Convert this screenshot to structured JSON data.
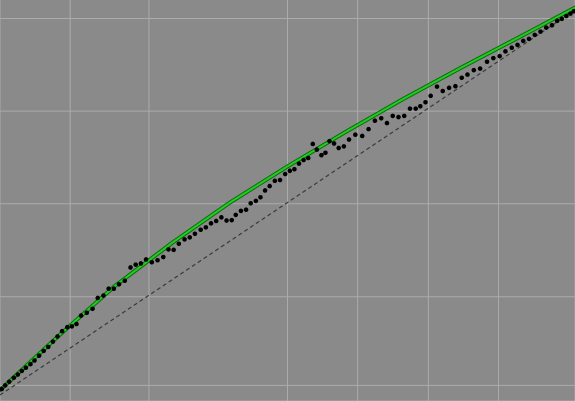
{
  "colors": {
    "background": "#8a8a8a",
    "grid": "#ababab",
    "points": "#000000",
    "fit_line": "#22cc22",
    "fit_line_edge": "#0a6a0a",
    "reference_line": "#3a3a3a"
  },
  "chart_data": {
    "type": "scatter",
    "title": "",
    "xlabel": "",
    "ylabel": "",
    "xlim": [
      0,
      1
    ],
    "ylim": [
      0,
      1
    ],
    "grid": true,
    "grid_x": [
      0.0,
      0.122,
      0.259,
      0.5,
      0.622,
      0.745,
      0.867,
      1.0
    ],
    "grid_y": [
      0.0,
      0.039,
      0.26,
      0.492,
      0.723,
      0.954
    ],
    "legend": "none",
    "series": [
      {
        "kind": "points",
        "points": [
          [
            0.003,
            0.03
          ],
          [
            0.009,
            0.039
          ],
          [
            0.016,
            0.048
          ],
          [
            0.024,
            0.058
          ],
          [
            0.031,
            0.066
          ],
          [
            0.038,
            0.075
          ],
          [
            0.045,
            0.083
          ],
          [
            0.053,
            0.092
          ],
          [
            0.06,
            0.101
          ],
          [
            0.068,
            0.113
          ],
          [
            0.076,
            0.125
          ],
          [
            0.084,
            0.135
          ],
          [
            0.092,
            0.148
          ],
          [
            0.1,
            0.161
          ],
          [
            0.108,
            0.174
          ],
          [
            0.117,
            0.184
          ],
          [
            0.125,
            0.186
          ],
          [
            0.133,
            0.192
          ],
          [
            0.141,
            0.213
          ],
          [
            0.151,
            0.22
          ],
          [
            0.161,
            0.23
          ],
          [
            0.17,
            0.257
          ],
          [
            0.18,
            0.263
          ],
          [
            0.189,
            0.28
          ],
          [
            0.198,
            0.28
          ],
          [
            0.207,
            0.291
          ],
          [
            0.217,
            0.3
          ],
          [
            0.227,
            0.333
          ],
          [
            0.236,
            0.34
          ],
          [
            0.245,
            0.343
          ],
          [
            0.254,
            0.353
          ],
          [
            0.264,
            0.346
          ],
          [
            0.274,
            0.351
          ],
          [
            0.284,
            0.359
          ],
          [
            0.293,
            0.378
          ],
          [
            0.302,
            0.377
          ],
          [
            0.311,
            0.392
          ],
          [
            0.321,
            0.403
          ],
          [
            0.33,
            0.408
          ],
          [
            0.339,
            0.417
          ],
          [
            0.349,
            0.427
          ],
          [
            0.358,
            0.433
          ],
          [
            0.367,
            0.443
          ],
          [
            0.376,
            0.449
          ],
          [
            0.385,
            0.458
          ],
          [
            0.394,
            0.45
          ],
          [
            0.403,
            0.451
          ],
          [
            0.41,
            0.464
          ],
          [
            0.419,
            0.474
          ],
          [
            0.428,
            0.477
          ],
          [
            0.436,
            0.493
          ],
          [
            0.445,
            0.499
          ],
          [
            0.453,
            0.508
          ],
          [
            0.461,
            0.525
          ],
          [
            0.469,
            0.536
          ],
          [
            0.478,
            0.549
          ],
          [
            0.487,
            0.551
          ],
          [
            0.496,
            0.566
          ],
          [
            0.504,
            0.574
          ],
          [
            0.512,
            0.578
          ],
          [
            0.52,
            0.592
          ],
          [
            0.528,
            0.601
          ],
          [
            0.536,
            0.606
          ],
          [
            0.544,
            0.641
          ],
          [
            0.551,
            0.627
          ],
          [
            0.559,
            0.613
          ],
          [
            0.566,
            0.619
          ],
          [
            0.573,
            0.648
          ],
          [
            0.581,
            0.642
          ],
          [
            0.589,
            0.631
          ],
          [
            0.598,
            0.635
          ],
          [
            0.607,
            0.652
          ],
          [
            0.618,
            0.664
          ],
          [
            0.63,
            0.661
          ],
          [
            0.641,
            0.678
          ],
          [
            0.652,
            0.699
          ],
          [
            0.663,
            0.705
          ],
          [
            0.673,
            0.693
          ],
          [
            0.683,
            0.711
          ],
          [
            0.693,
            0.708
          ],
          [
            0.703,
            0.711
          ],
          [
            0.713,
            0.729
          ],
          [
            0.723,
            0.729
          ],
          [
            0.731,
            0.735
          ],
          [
            0.74,
            0.745
          ],
          [
            0.749,
            0.761
          ],
          [
            0.76,
            0.784
          ],
          [
            0.77,
            0.773
          ],
          [
            0.781,
            0.781
          ],
          [
            0.792,
            0.785
          ],
          [
            0.803,
            0.806
          ],
          [
            0.813,
            0.814
          ],
          [
            0.824,
            0.825
          ],
          [
            0.835,
            0.829
          ],
          [
            0.847,
            0.846
          ],
          [
            0.858,
            0.855
          ],
          [
            0.869,
            0.86
          ],
          [
            0.879,
            0.872
          ],
          [
            0.89,
            0.881
          ],
          [
            0.9,
            0.888
          ],
          [
            0.91,
            0.898
          ],
          [
            0.92,
            0.903
          ],
          [
            0.93,
            0.913
          ],
          [
            0.94,
            0.921
          ],
          [
            0.95,
            0.931
          ],
          [
            0.96,
            0.937
          ],
          [
            0.969,
            0.948
          ],
          [
            0.977,
            0.953
          ],
          [
            0.985,
            0.96
          ],
          [
            0.992,
            0.966
          ],
          [
            0.998,
            0.972
          ]
        ]
      },
      {
        "kind": "fit_curve",
        "points": [
          [
            0.0,
            0.027
          ],
          [
            0.1,
            0.16
          ],
          [
            0.2,
            0.287
          ],
          [
            0.3,
            0.395
          ],
          [
            0.4,
            0.495
          ],
          [
            0.5,
            0.585
          ],
          [
            0.6,
            0.67
          ],
          [
            0.7,
            0.752
          ],
          [
            0.8,
            0.83
          ],
          [
            0.9,
            0.905
          ],
          [
            1.0,
            0.981
          ]
        ]
      },
      {
        "kind": "reference_line",
        "points": [
          [
            0.0,
            0.015
          ],
          [
            1.0,
            0.975
          ]
        ]
      }
    ]
  }
}
